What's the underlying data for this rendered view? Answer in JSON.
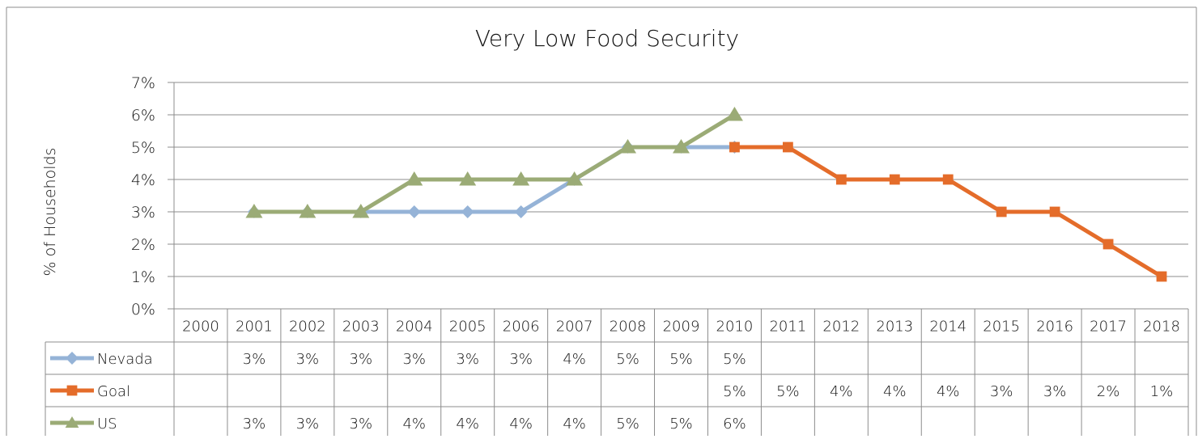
{
  "chart_data": {
    "type": "line",
    "title": "Very Low Food Security",
    "ylabel": "% of Households",
    "xlabel": "",
    "ylim": [
      0,
      7
    ],
    "y_ticks": [
      "0%",
      "1%",
      "2%",
      "3%",
      "4%",
      "5%",
      "6%",
      "7%"
    ],
    "grid": true,
    "legend": "data table below plot",
    "categories": [
      "2000",
      "2001",
      "2002",
      "2003",
      "2004",
      "2005",
      "2006",
      "2007",
      "2008",
      "2009",
      "2010",
      "2011",
      "2012",
      "2013",
      "2014",
      "2015",
      "2016",
      "2017",
      "2018"
    ],
    "series": [
      {
        "name": "Nevada",
        "color": "#95b3d7",
        "marker": "diamond",
        "values": [
          null,
          3,
          3,
          3,
          3,
          3,
          3,
          4,
          5,
          5,
          5,
          null,
          null,
          null,
          null,
          null,
          null,
          null,
          null
        ],
        "labels": [
          "",
          "3%",
          "3%",
          "3%",
          "3%",
          "3%",
          "3%",
          "4%",
          "5%",
          "5%",
          "5%",
          "",
          "",
          "",
          "",
          "",
          "",
          "",
          ""
        ]
      },
      {
        "name": "Goal",
        "color": "#e46c2a",
        "marker": "square",
        "values": [
          null,
          null,
          null,
          null,
          null,
          null,
          null,
          null,
          null,
          null,
          5,
          5,
          4,
          4,
          4,
          3,
          3,
          2,
          1
        ],
        "labels": [
          "",
          "",
          "",
          "",
          "",
          "",
          "",
          "",
          "",
          "",
          "5%",
          "5%",
          "4%",
          "4%",
          "4%",
          "3%",
          "3%",
          "2%",
          "1%"
        ]
      },
      {
        "name": "US",
        "color": "#9bab76",
        "marker": "triangle",
        "values": [
          null,
          3,
          3,
          3,
          4,
          4,
          4,
          4,
          5,
          5,
          6,
          null,
          null,
          null,
          null,
          null,
          null,
          null,
          null
        ],
        "labels": [
          "",
          "3%",
          "3%",
          "3%",
          "4%",
          "4%",
          "4%",
          "4%",
          "5%",
          "5%",
          "6%",
          "",
          "",
          "",
          "",
          "",
          "",
          "",
          ""
        ]
      }
    ]
  },
  "colors": {
    "grid": "#8c8c8c",
    "border": "#8c8c8c"
  }
}
